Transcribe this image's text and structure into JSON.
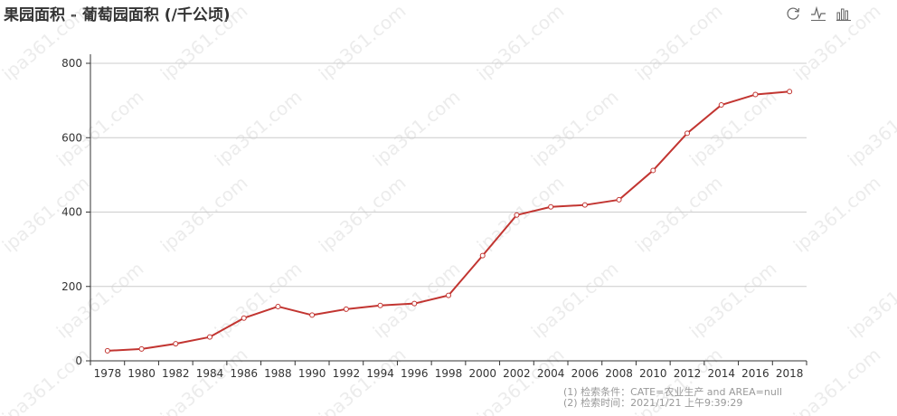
{
  "title": "果园面积 - 葡萄园面积 (/千公顷)",
  "toolbox": {
    "restore_icon": "restore-icon",
    "line_icon": "line-chart-icon",
    "bar_icon": "bar-chart-icon"
  },
  "footnotes": {
    "line1": "(1) 检索条件：CATE=农业生产 and AREA=null",
    "line2": "(2) 检索时间：2021/1/21 上午9:39:29"
  },
  "watermark_text": "ipa361.com",
  "chart_data": {
    "type": "line",
    "title": "果园面积 - 葡萄园面积 (/千公顷)",
    "categories": [
      "1978",
      "1980",
      "1982",
      "1984",
      "1986",
      "1988",
      "1990",
      "1992",
      "1994",
      "1996",
      "1998",
      "2000",
      "2002",
      "2004",
      "2006",
      "2008",
      "2010",
      "2012",
      "2014",
      "2016",
      "2018"
    ],
    "series": [
      {
        "values": [
          27,
          32,
          46,
          64,
          115,
          146,
          123,
          139,
          149,
          154,
          176,
          283,
          392,
          414,
          419,
          433,
          512,
          612,
          688,
          716,
          724
        ],
        "color": "#c23531"
      }
    ],
    "yticks": [
      0,
      200,
      400,
      600,
      800
    ],
    "ylim": [
      0,
      800
    ],
    "grid": true
  }
}
